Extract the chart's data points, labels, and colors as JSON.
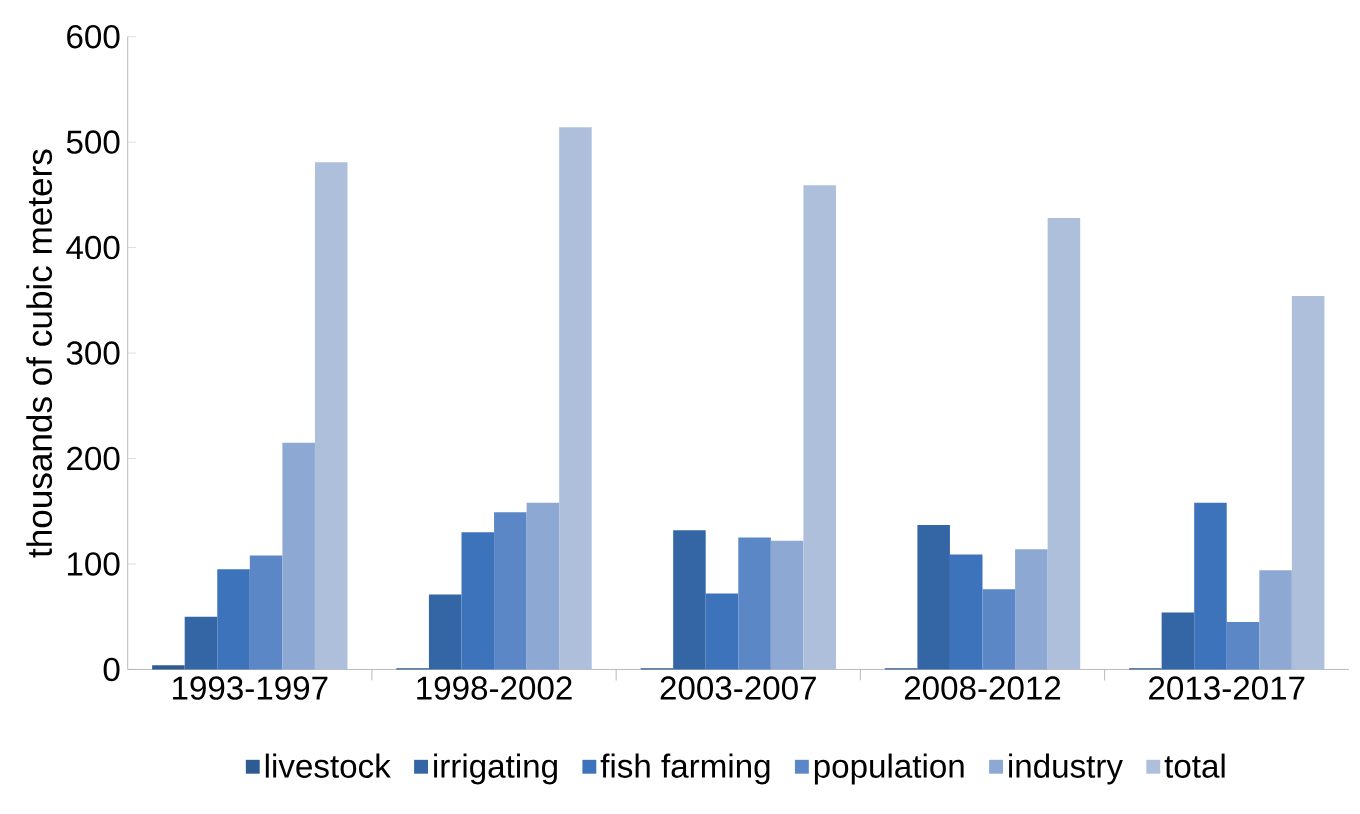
{
  "chart_data": {
    "type": "bar",
    "ylabel": "thousands of cubic meters",
    "categories": [
      "1993-1997",
      "1998-2002",
      "2003-2007",
      "2008-2012",
      "2013-2017"
    ],
    "series": [
      {
        "name": "livestock",
        "color": "#2e5b92",
        "values": [
          4,
          1,
          1,
          1,
          1
        ]
      },
      {
        "name": "irrigating",
        "color": "#3465a4",
        "values": [
          50,
          71,
          132,
          137,
          54
        ]
      },
      {
        "name": "fish farming",
        "color": "#3c73ba",
        "values": [
          95,
          130,
          72,
          109,
          158
        ]
      },
      {
        "name": "population",
        "color": "#5b87c6",
        "values": [
          108,
          149,
          125,
          76,
          45
        ]
      },
      {
        "name": "industry",
        "color": "#8ea8d4",
        "values": [
          215,
          158,
          122,
          114,
          94
        ]
      },
      {
        "name": "total",
        "color": "#aebfdc",
        "values": [
          481,
          514,
          459,
          428,
          354
        ]
      }
    ],
    "ylim": [
      0,
      600
    ],
    "yticks": [
      0,
      100,
      200,
      300,
      400,
      500,
      600
    ],
    "legend": "bottom",
    "grid": false
  }
}
